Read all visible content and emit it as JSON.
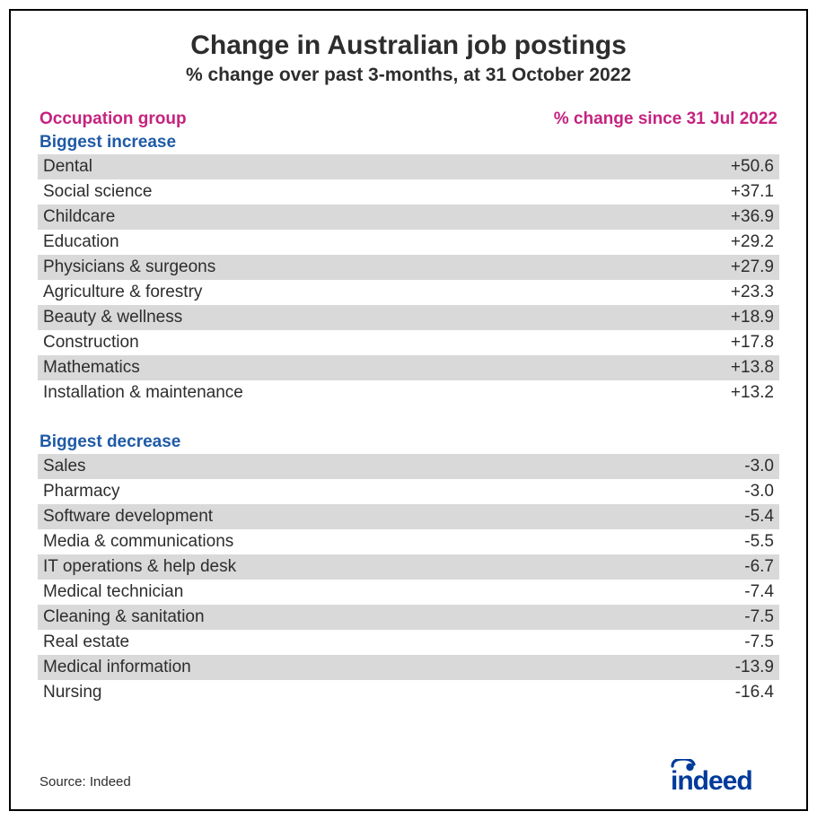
{
  "title": "Change in Australian job postings",
  "subtitle": "% change over past 3-months, at 31 October 2022",
  "headers": {
    "left": "Occupation group",
    "right": "% change since 31 Jul 2022"
  },
  "colors": {
    "header_text": "#c5237f",
    "section_text": "#1f5aa6",
    "body_text": "#2d2d2d",
    "stripe_bg": "#d9d9d9",
    "background": "#ffffff",
    "border": "#000000",
    "logo": "#003a9b"
  },
  "typography": {
    "title_fontsize": 30,
    "subtitle_fontsize": 21,
    "header_fontsize": 19,
    "row_fontsize": 19,
    "source_fontsize": 15,
    "font_family": "Segoe UI"
  },
  "sections": [
    {
      "label": "Biggest increase",
      "rows": [
        {
          "label": "Dental",
          "value": "+50.6"
        },
        {
          "label": "Social science",
          "value": "+37.1"
        },
        {
          "label": "Childcare",
          "value": "+36.9"
        },
        {
          "label": "Education",
          "value": "+29.2"
        },
        {
          "label": "Physicians & surgeons",
          "value": "+27.9"
        },
        {
          "label": "Agriculture & forestry",
          "value": "+23.3"
        },
        {
          "label": "Beauty & wellness",
          "value": "+18.9"
        },
        {
          "label": "Construction",
          "value": "+17.8"
        },
        {
          "label": "Mathematics",
          "value": "+13.8"
        },
        {
          "label": "Installation & maintenance",
          "value": "+13.2"
        }
      ]
    },
    {
      "label": "Biggest decrease",
      "rows": [
        {
          "label": "Sales",
          "value": "-3.0"
        },
        {
          "label": "Pharmacy",
          "value": "-3.0"
        },
        {
          "label": "Software development",
          "value": "-5.4"
        },
        {
          "label": "Media & communications",
          "value": "-5.5"
        },
        {
          "label": "IT operations & help desk",
          "value": "-6.7"
        },
        {
          "label": "Medical technician",
          "value": "-7.4"
        },
        {
          "label": "Cleaning & sanitation",
          "value": "-7.5"
        },
        {
          "label": "Real estate",
          "value": "-7.5"
        },
        {
          "label": "Medical information",
          "value": "-13.9"
        },
        {
          "label": "Nursing",
          "value": "-16.4"
        }
      ]
    }
  ],
  "source": "Source: Indeed",
  "logo_text": "indeed"
}
